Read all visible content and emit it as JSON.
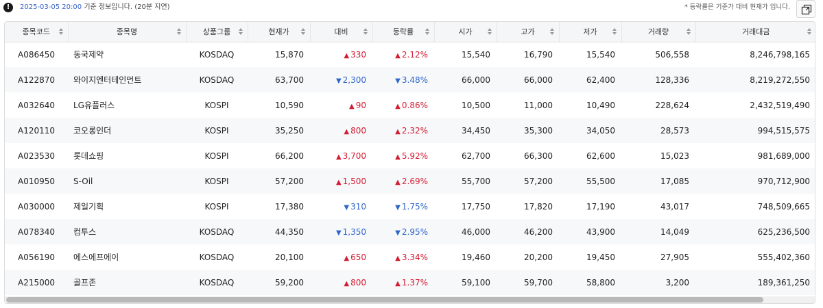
{
  "header": {
    "info_icon": "exclamation-icon",
    "timestamp": "2025-03-05 20:00",
    "info_text": "기준 정보입니다. (20분 지연)",
    "note": "* 등락률은 기준가 대비 현재가 입니다.",
    "expand_icon": "expand-window-icon"
  },
  "colors": {
    "up": "#d31c33",
    "down": "#2f66c9",
    "link": "#3a63c8"
  },
  "table": {
    "columns": [
      {
        "key": "code",
        "label": "종목코드"
      },
      {
        "key": "name",
        "label": "종목명"
      },
      {
        "key": "group",
        "label": "상품그룹"
      },
      {
        "key": "price",
        "label": "현재가"
      },
      {
        "key": "change",
        "label": "대비"
      },
      {
        "key": "rate",
        "label": "등락률"
      },
      {
        "key": "open",
        "label": "시가"
      },
      {
        "key": "high",
        "label": "고가"
      },
      {
        "key": "low",
        "label": "저가"
      },
      {
        "key": "volume",
        "label": "거래량"
      },
      {
        "key": "amount",
        "label": "거래대금"
      }
    ],
    "rows": [
      {
        "code": "A086450",
        "name": "동국제약",
        "group": "KOSDAQ",
        "price": "15,870",
        "dir": "up",
        "change": "330",
        "rate": "2.12%",
        "open": "15,540",
        "high": "16,790",
        "low": "15,540",
        "volume": "506,558",
        "amount": "8,246,798,165"
      },
      {
        "code": "A122870",
        "name": "와이지엔터테인먼트",
        "group": "KOSDAQ",
        "price": "63,700",
        "dir": "down",
        "change": "2,300",
        "rate": "3.48%",
        "open": "66,000",
        "high": "66,000",
        "low": "62,400",
        "volume": "128,336",
        "amount": "8,219,272,550"
      },
      {
        "code": "A032640",
        "name": "LG유플러스",
        "group": "KOSPI",
        "price": "10,590",
        "dir": "up",
        "change": "90",
        "rate": "0.86%",
        "open": "10,500",
        "high": "11,000",
        "low": "10,490",
        "volume": "228,624",
        "amount": "2,432,519,490"
      },
      {
        "code": "A120110",
        "name": "코오롱인더",
        "group": "KOSPI",
        "price": "35,250",
        "dir": "up",
        "change": "800",
        "rate": "2.32%",
        "open": "34,450",
        "high": "35,300",
        "low": "34,050",
        "volume": "28,573",
        "amount": "994,515,575"
      },
      {
        "code": "A023530",
        "name": "롯데쇼핑",
        "group": "KOSPI",
        "price": "66,200",
        "dir": "up",
        "change": "3,700",
        "rate": "5.92%",
        "open": "62,700",
        "high": "66,300",
        "low": "62,600",
        "volume": "15,023",
        "amount": "981,689,000"
      },
      {
        "code": "A010950",
        "name": "S-Oil",
        "group": "KOSPI",
        "price": "57,200",
        "dir": "up",
        "change": "1,500",
        "rate": "2.69%",
        "open": "55,700",
        "high": "57,200",
        "low": "55,500",
        "volume": "17,085",
        "amount": "970,712,900"
      },
      {
        "code": "A030000",
        "name": "제일기획",
        "group": "KOSPI",
        "price": "17,380",
        "dir": "down",
        "change": "310",
        "rate": "1.75%",
        "open": "17,750",
        "high": "17,820",
        "low": "17,190",
        "volume": "43,017",
        "amount": "748,509,665"
      },
      {
        "code": "A078340",
        "name": "컴투스",
        "group": "KOSDAQ",
        "price": "44,350",
        "dir": "down",
        "change": "1,350",
        "rate": "2.95%",
        "open": "46,000",
        "high": "46,200",
        "low": "43,900",
        "volume": "14,049",
        "amount": "625,236,500"
      },
      {
        "code": "A056190",
        "name": "에스에프에이",
        "group": "KOSDAQ",
        "price": "20,100",
        "dir": "up",
        "change": "650",
        "rate": "3.34%",
        "open": "19,460",
        "high": "20,200",
        "low": "19,450",
        "volume": "27,905",
        "amount": "555,402,360"
      },
      {
        "code": "A215000",
        "name": "골프존",
        "group": "KOSDAQ",
        "price": "59,200",
        "dir": "up",
        "change": "800",
        "rate": "1.37%",
        "open": "59,100",
        "high": "59,700",
        "low": "58,800",
        "volume": "3,200",
        "amount": "189,361,250"
      }
    ]
  }
}
